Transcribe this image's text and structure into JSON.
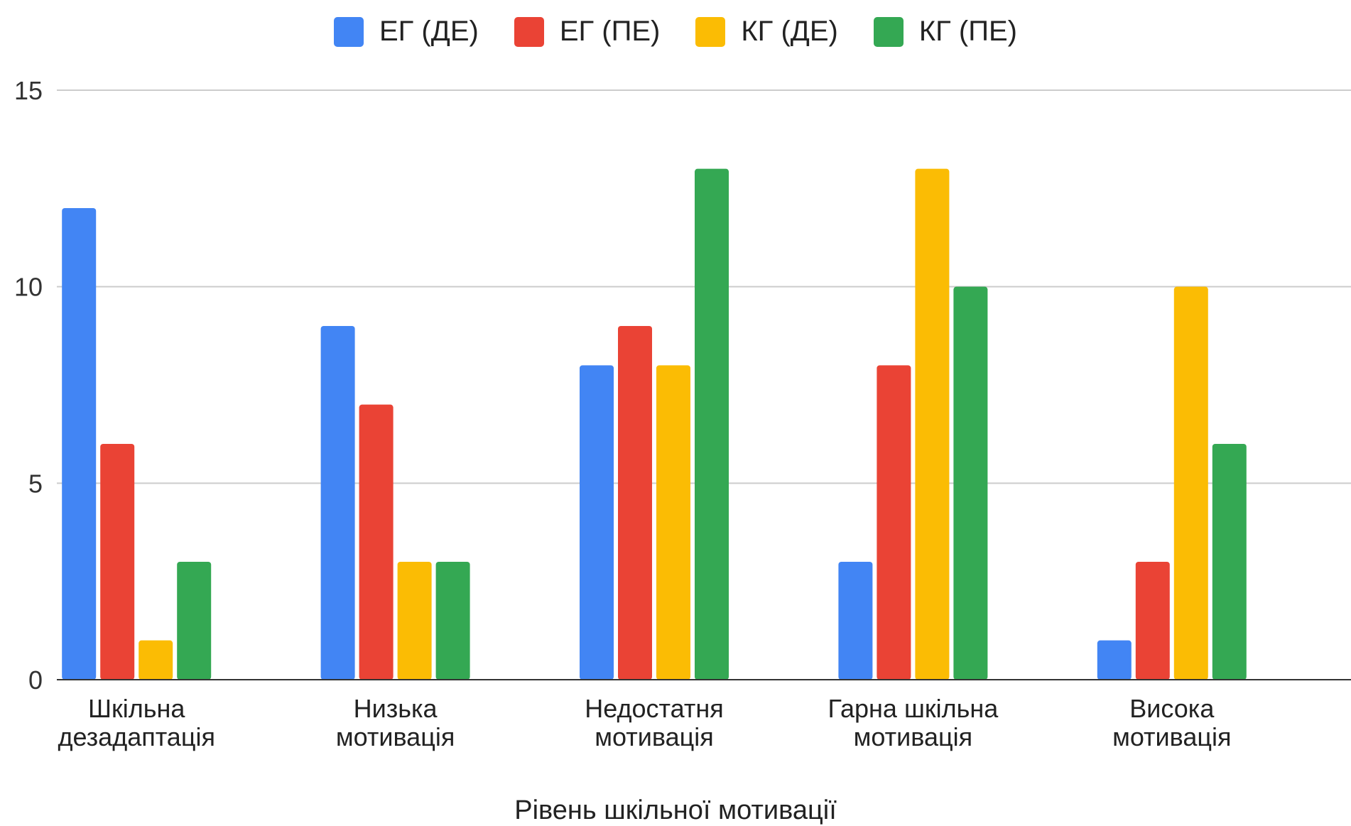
{
  "chart_data": {
    "type": "bar",
    "categories": [
      [
        "Шкільна",
        "дезадаптація"
      ],
      [
        "Низька",
        "мотивація"
      ],
      [
        "Недостатня",
        "мотивація"
      ],
      [
        "Гарна шкільна",
        "мотивація"
      ],
      [
        "Висока",
        "мотивація"
      ]
    ],
    "series": [
      {
        "name": "ЕГ (ДЕ)",
        "color": "#4285F4",
        "values": [
          12,
          9,
          8,
          3,
          1
        ]
      },
      {
        "name": "ЕГ (ПЕ)",
        "color": "#EA4335",
        "values": [
          6,
          7,
          9,
          8,
          3
        ]
      },
      {
        "name": "КГ (ДЕ)",
        "color": "#FBBC04",
        "values": [
          1,
          3,
          8,
          13,
          10
        ]
      },
      {
        "name": "КГ (ПЕ)",
        "color": "#34A853",
        "values": [
          3,
          3,
          13,
          10,
          6
        ]
      }
    ],
    "xlabel": "Рівень шкільної мотивації",
    "ylabel": "",
    "ylim": [
      0,
      15
    ],
    "yticks": [
      0,
      5,
      10,
      15
    ],
    "grid": true,
    "legend_position": "top"
  }
}
